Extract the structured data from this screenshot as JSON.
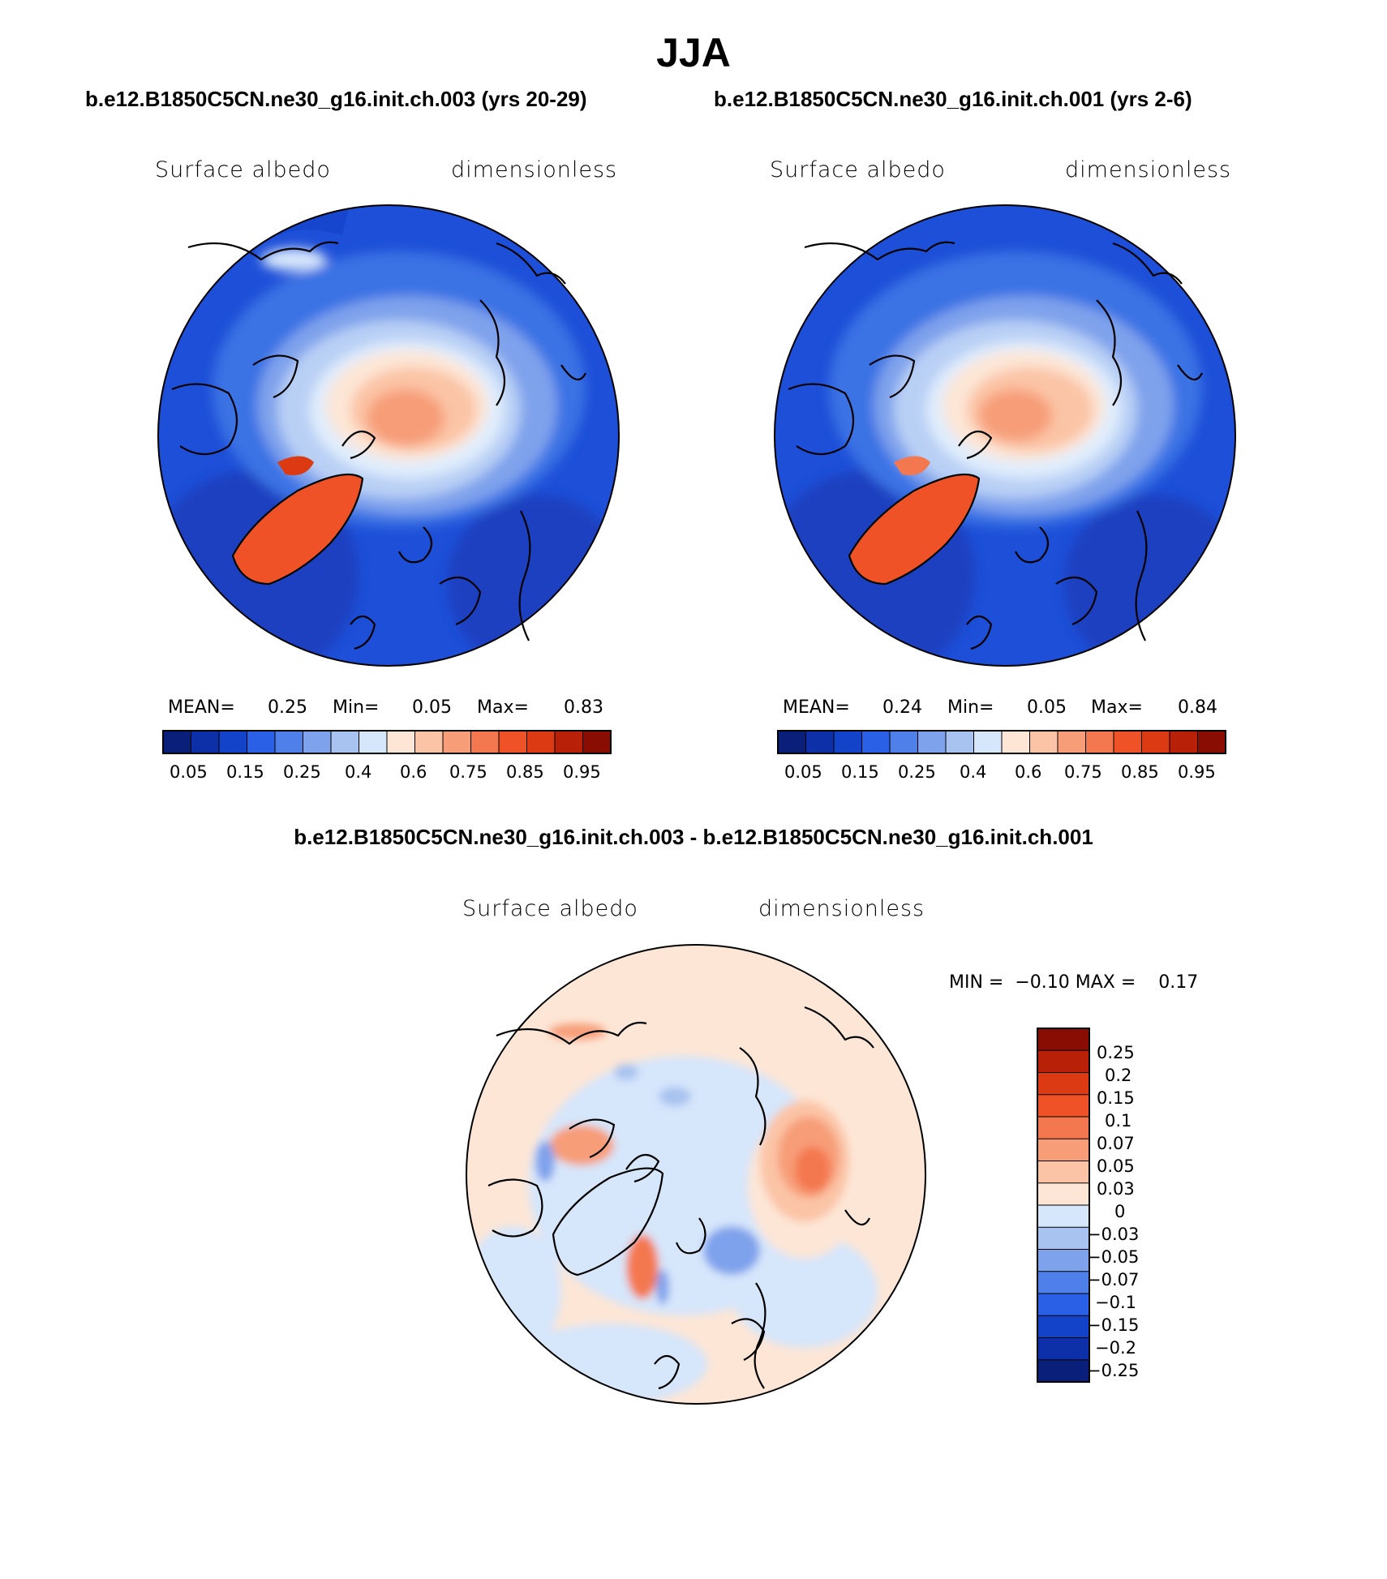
{
  "title": "JJA",
  "panels": [
    {
      "case_title": "b.e12.B1850C5CN.ne30_g16.init.ch.003 (yrs 20-29)",
      "variable": "Surface albedo",
      "units": "dimensionless",
      "stats": {
        "mean_label": "MEAN=",
        "mean": "0.25",
        "min_label": "Min=",
        "min": "0.05",
        "max_label": "Max=",
        "max": "0.83"
      }
    },
    {
      "case_title": "b.e12.B1850C5CN.ne30_g16.init.ch.001 (yrs 2-6)",
      "variable": "Surface albedo",
      "units": "dimensionless",
      "stats": {
        "mean_label": "MEAN=",
        "mean": "0.24",
        "min_label": "Min=",
        "min": "0.05",
        "max_label": "Max=",
        "max": "0.84"
      }
    }
  ],
  "colorbar_top": {
    "colors": [
      "#0a1f7a",
      "#0d2fa8",
      "#1243c9",
      "#2a60e6",
      "#4f7fe8",
      "#7fa2ec",
      "#a9c3f0",
      "#d6e6fb",
      "#fde6d6",
      "#fbc4a6",
      "#f79d78",
      "#f4784f",
      "#ee5226",
      "#db3a12",
      "#b82108",
      "#8a0d04"
    ],
    "labels": [
      "0.05",
      "0.15",
      "0.25",
      "0.4",
      "0.6",
      "0.75",
      "0.85",
      "0.95"
    ]
  },
  "diff_panel": {
    "title": "b.e12.B1850C5CN.ne30_g16.init.ch.003 - b.e12.B1850C5CN.ne30_g16.init.ch.001",
    "variable": "Surface albedo",
    "units": "dimensionless",
    "stats": "MIN =  −0.10 MAX =    0.17"
  },
  "colorbar_diff": {
    "colors": [
      "#8a0d04",
      "#b82108",
      "#db3a12",
      "#ee5226",
      "#f4784f",
      "#f79d78",
      "#fbc4a6",
      "#fde6d6",
      "#d6e6fb",
      "#a9c3f0",
      "#7fa2ec",
      "#4f7fe8",
      "#2a60e6",
      "#1243c9",
      "#0d2fa8",
      "#0a1f7a"
    ],
    "labels": [
      "0.25",
      "0.2",
      "0.15",
      "0.1",
      "0.07",
      "0.05",
      "0.03",
      "0",
      "−0.03",
      "−0.05",
      "−0.07",
      "−0.1",
      "−0.15",
      "−0.2",
      "−0.25"
    ]
  }
}
